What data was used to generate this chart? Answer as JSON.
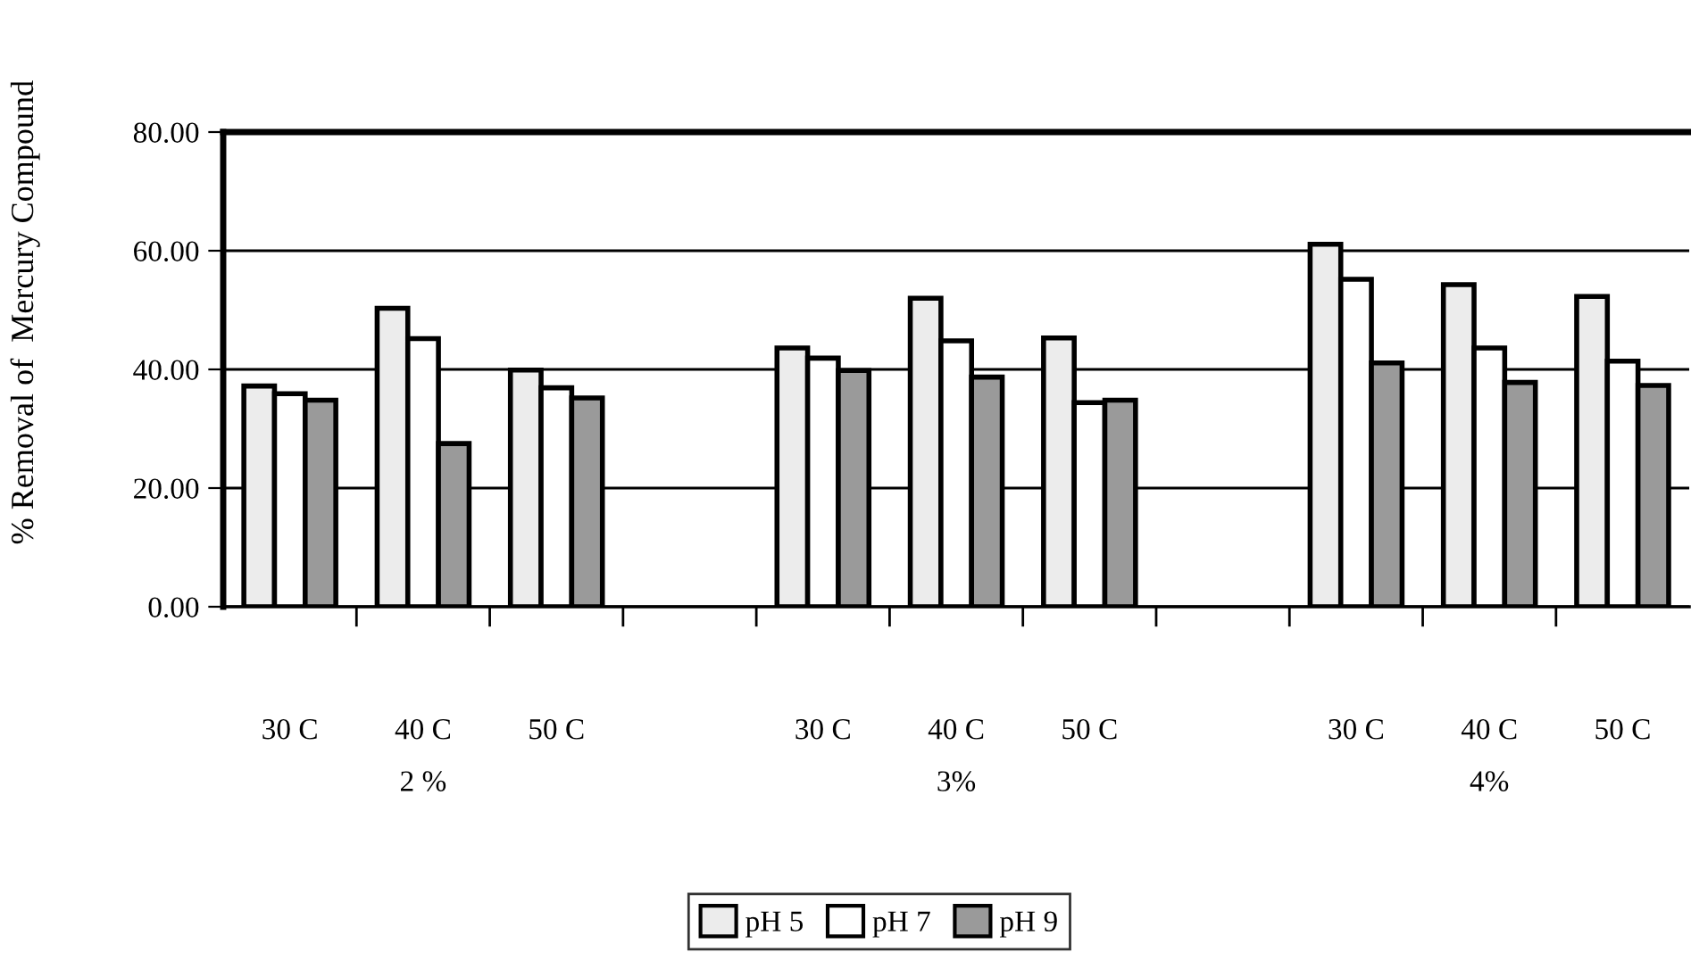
{
  "chart_data": {
    "type": "bar",
    "ylabel": "% Removal of  Mercury Compound",
    "categories": [
      "30 C",
      "40 C",
      "50 C",
      null,
      "30 C",
      "40 C",
      "50 C",
      null,
      "30 C",
      "40 C",
      "50 C"
    ],
    "series": [
      {
        "name": "pH 5",
        "color": "#ececec",
        "values": [
          37.2,
          50.3,
          39.9,
          null,
          43.6,
          52.0,
          45.3,
          null,
          61.1,
          54.3,
          52.3
        ]
      },
      {
        "name": "pH 7",
        "color": "#ffffff",
        "values": [
          35.9,
          45.2,
          36.9,
          null,
          41.9,
          44.8,
          34.4,
          null,
          55.2,
          43.6,
          41.4
        ]
      },
      {
        "name": "pH 9",
        "color": "#9a9a9a",
        "values": [
          34.8,
          27.5,
          35.2,
          null,
          39.8,
          38.7,
          34.8,
          null,
          41.1,
          37.8,
          37.3
        ]
      }
    ],
    "ylim": [
      0,
      80
    ],
    "yticks": [
      {
        "value": 0,
        "label": "0.00"
      },
      {
        "value": 20,
        "label": "20.00"
      },
      {
        "value": 40,
        "label": "40.00"
      },
      {
        "value": 60,
        "label": "60.00"
      },
      {
        "value": 80,
        "label": "80.00"
      }
    ],
    "grid": "y",
    "legend": "bottom",
    "annotations": [
      "2 %",
      "3%",
      "4%"
    ]
  }
}
